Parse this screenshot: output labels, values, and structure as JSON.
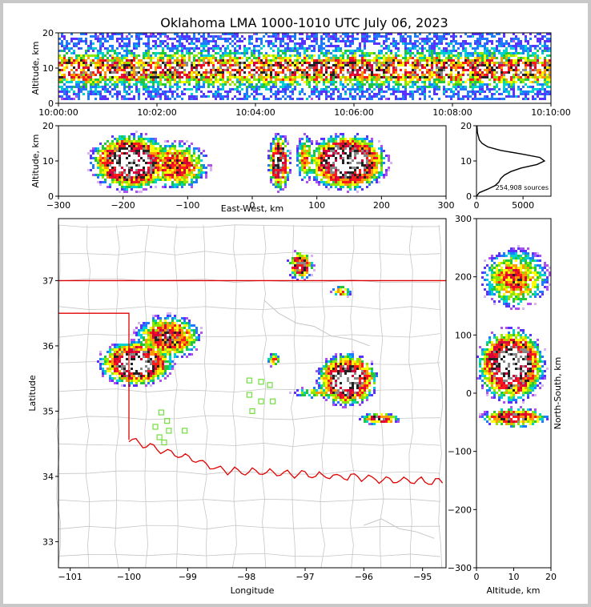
{
  "figure": {
    "title": "Oklahoma LMA 1000-1010 UTC July 06, 2023"
  },
  "chart_data": [
    {
      "panel": "time-height",
      "type": "heatmap",
      "ylabel": "Altitude, km",
      "ylim": [
        0,
        20
      ],
      "y_ticks": [
        "0",
        "10",
        "20"
      ],
      "x_ticks": [
        "10:00:00",
        "10:02:00",
        "10:04:00",
        "10:06:00",
        "10:08:00",
        "10:10:00"
      ],
      "note": "source density dense across the full 10 minutes, peak near 8-12 km"
    },
    {
      "panel": "east-west-height",
      "type": "heatmap",
      "xlabel": "East-West, km",
      "ylabel": "Altitude, km",
      "xlim": [
        -300,
        300
      ],
      "ylim": [
        0,
        20
      ],
      "x_ticks": [
        "−300",
        "−200",
        "−100",
        "0",
        "100",
        "200",
        "300"
      ],
      "y_ticks": [
        "0",
        "10",
        "20"
      ],
      "clusters": [
        {
          "x": -190,
          "y": 10,
          "rx": 55,
          "ry": 7,
          "intensity": 1.0
        },
        {
          "x": -120,
          "y": 9,
          "rx": 45,
          "ry": 6,
          "intensity": 0.7
        },
        {
          "x": 40,
          "y": 10,
          "rx": 15,
          "ry": 7,
          "intensity": 0.9
        },
        {
          "x": 80,
          "y": 11,
          "rx": 12,
          "ry": 6,
          "intensity": 0.6
        },
        {
          "x": 145,
          "y": 10,
          "rx": 55,
          "ry": 7,
          "intensity": 1.0
        }
      ]
    },
    {
      "panel": "altitude-histogram",
      "type": "line",
      "xlim": [
        0,
        8000
      ],
      "ylim": [
        0,
        20
      ],
      "x_ticks": [
        "0",
        "5000"
      ],
      "y_ticks": [
        "0",
        "10",
        "20"
      ],
      "annotation": "254,908 sources",
      "profile": [
        {
          "alt": 0,
          "count": 0
        },
        {
          "alt": 1,
          "count": 300
        },
        {
          "alt": 2,
          "count": 1200
        },
        {
          "alt": 3,
          "count": 2000
        },
        {
          "alt": 4,
          "count": 2400
        },
        {
          "alt": 5,
          "count": 2600
        },
        {
          "alt": 6,
          "count": 3000
        },
        {
          "alt": 7,
          "count": 3700
        },
        {
          "alt": 8,
          "count": 4800
        },
        {
          "alt": 9,
          "count": 6500
        },
        {
          "alt": 10,
          "count": 7300
        },
        {
          "alt": 11,
          "count": 6800
        },
        {
          "alt": 12,
          "count": 4800
        },
        {
          "alt": 13,
          "count": 2600
        },
        {
          "alt": 14,
          "count": 1200
        },
        {
          "alt": 15,
          "count": 600
        },
        {
          "alt": 16,
          "count": 300
        },
        {
          "alt": 18,
          "count": 100
        },
        {
          "alt": 20,
          "count": 50
        }
      ]
    },
    {
      "panel": "plan-view",
      "type": "heatmap",
      "xlabel": "Longitude",
      "ylabel": "Latitude",
      "xlim": [
        -101.2,
        -94.6
      ],
      "ylim": [
        32.6,
        37.95
      ],
      "x_ticks": [
        "−101",
        "−100",
        "−99",
        "−98",
        "−97",
        "−96",
        "−95"
      ],
      "y_ticks": [
        "33",
        "34",
        "35",
        "36",
        "37"
      ],
      "clusters": [
        {
          "lon": -99.9,
          "lat": 35.75,
          "rx": 0.55,
          "ry": 0.3,
          "intensity": 1.0
        },
        {
          "lon": -99.35,
          "lat": 36.15,
          "rx": 0.5,
          "ry": 0.3,
          "intensity": 0.75
        },
        {
          "lon": -97.1,
          "lat": 37.25,
          "rx": 0.2,
          "ry": 0.2,
          "intensity": 0.8
        },
        {
          "lon": -96.3,
          "lat": 35.5,
          "rx": 0.45,
          "ry": 0.35,
          "intensity": 1.0
        },
        {
          "lon": -95.75,
          "lat": 34.9,
          "rx": 0.3,
          "ry": 0.08,
          "intensity": 0.8
        },
        {
          "lon": -96.4,
          "lat": 36.85,
          "rx": 0.15,
          "ry": 0.08,
          "intensity": 0.6
        },
        {
          "lon": -97.55,
          "lat": 35.8,
          "rx": 0.1,
          "ry": 0.1,
          "intensity": 0.6
        },
        {
          "lon": -96.8,
          "lat": 35.3,
          "rx": 0.4,
          "ry": 0.08,
          "intensity": 0.5
        }
      ],
      "stations": [
        {
          "lon": -99.45,
          "lat": 34.98
        },
        {
          "lon": -99.35,
          "lat": 34.85
        },
        {
          "lon": -99.55,
          "lat": 34.76
        },
        {
          "lon": -99.32,
          "lat": 34.7
        },
        {
          "lon": -99.48,
          "lat": 34.6
        },
        {
          "lon": -99.4,
          "lat": 34.52
        },
        {
          "lon": -99.05,
          "lat": 34.7
        },
        {
          "lon": -97.95,
          "lat": 35.47
        },
        {
          "lon": -97.75,
          "lat": 35.45
        },
        {
          "lon": -97.6,
          "lat": 35.4
        },
        {
          "lon": -97.95,
          "lat": 35.25
        },
        {
          "lon": -97.75,
          "lat": 35.15
        },
        {
          "lon": -97.55,
          "lat": 35.15
        },
        {
          "lon": -97.9,
          "lat": 35.0
        }
      ]
    },
    {
      "panel": "north-south-height",
      "type": "heatmap",
      "xlabel": "Altitude, km",
      "ylabel": "North-South, km",
      "xlim": [
        0,
        20
      ],
      "ylim": [
        -300,
        300
      ],
      "x_ticks": [
        "0",
        "10",
        "20"
      ],
      "y_ticks": [
        "−300",
        "−200",
        "−100",
        "0",
        "100",
        "200",
        "300"
      ],
      "clusters": [
        {
          "alt": 9,
          "ns": 50,
          "rx": 8,
          "ry": 55,
          "intensity": 1.0
        },
        {
          "alt": 10,
          "ns": 200,
          "rx": 8,
          "ry": 45,
          "intensity": 0.65
        },
        {
          "alt": 10,
          "ns": -40,
          "rx": 8,
          "ry": 15,
          "intensity": 0.8
        }
      ]
    }
  ]
}
